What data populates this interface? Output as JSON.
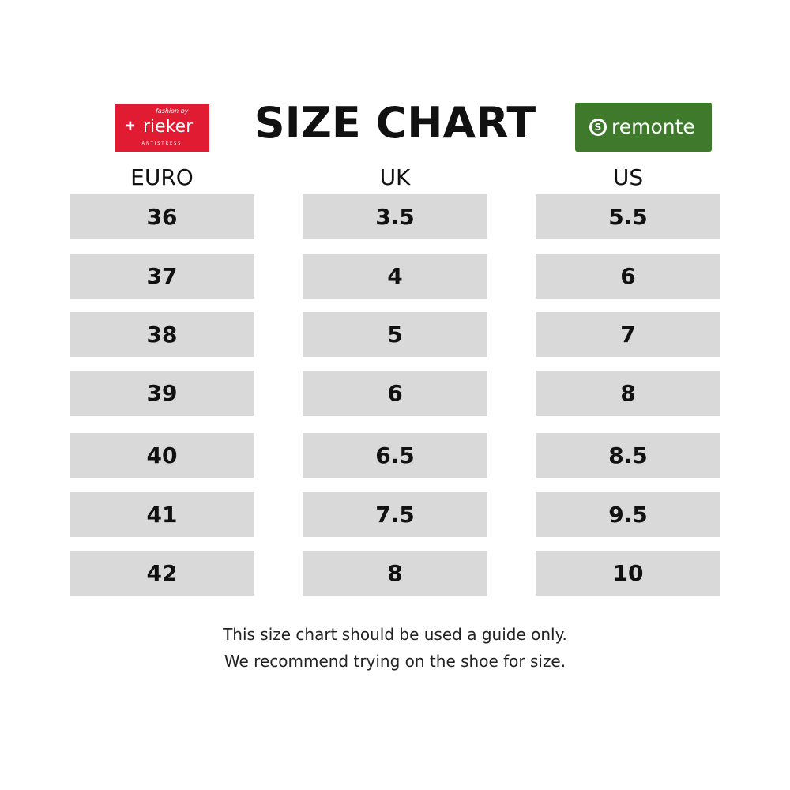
{
  "title": "SIZE CHART",
  "logos": {
    "left": {
      "name": "rieker",
      "tagline": "fashion by",
      "sub": "ANTISTRESS",
      "color": "#e01b32"
    },
    "right": {
      "name": "remonte",
      "color": "#3f7a2c"
    }
  },
  "table": {
    "columns": [
      {
        "header": "EURO",
        "values": [
          "36",
          "37",
          "38",
          "39",
          "40",
          "41",
          "42"
        ]
      },
      {
        "header": "UK",
        "values": [
          "3.5",
          "4",
          "5",
          "6",
          "6.5",
          "7.5",
          "8"
        ]
      },
      {
        "header": "US",
        "values": [
          "5.5",
          "6",
          "7",
          "8",
          "8.5",
          "9.5",
          "10"
        ]
      }
    ],
    "cell_color": "#d9d9d9"
  },
  "footer": {
    "line1": "This size chart should be used a guide only.",
    "line2": "We recommend trying on the shoe for size."
  }
}
